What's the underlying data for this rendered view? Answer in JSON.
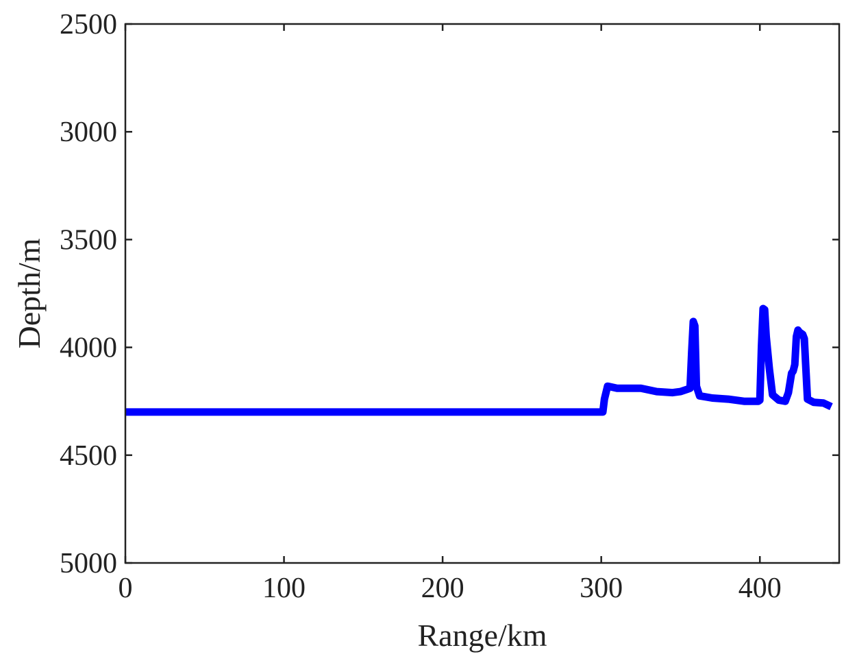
{
  "chart_data": {
    "type": "line",
    "title": "",
    "xlabel": "Range/km",
    "ylabel": "Depth/m",
    "xlim": [
      0,
      450
    ],
    "ylim": [
      2500,
      5000
    ],
    "y_reversed": true,
    "x_ticks": [
      0,
      100,
      200,
      300,
      400
    ],
    "y_ticks": [
      2500,
      3000,
      3500,
      4000,
      4500,
      5000
    ],
    "grid": false,
    "legend": "none",
    "colors": {
      "line": "#0000ff",
      "axes": "#222222",
      "background": "#ffffff"
    },
    "series": [
      {
        "x": [
          0,
          50,
          100,
          150,
          200,
          250,
          300,
          301,
          302,
          304,
          310,
          325,
          335,
          345,
          350,
          354,
          356,
          357,
          358,
          359,
          360,
          362,
          370,
          380,
          390,
          395,
          399,
          400,
          401,
          402,
          403,
          404,
          406,
          408,
          412,
          416,
          418,
          420,
          421,
          422,
          423,
          424,
          425,
          427,
          428,
          430,
          434,
          440,
          445
        ],
        "y": [
          4300,
          4300,
          4300,
          4300,
          4300,
          4300,
          4300,
          4300,
          4240,
          4180,
          4190,
          4190,
          4205,
          4210,
          4205,
          4195,
          4190,
          4020,
          3880,
          3900,
          4180,
          4225,
          4235,
          4240,
          4250,
          4250,
          4250,
          4245,
          4000,
          3820,
          3825,
          3950,
          4100,
          4220,
          4245,
          4250,
          4210,
          4120,
          4110,
          4080,
          3950,
          3920,
          3930,
          3940,
          3960,
          4240,
          4255,
          4258,
          4275
        ]
      }
    ]
  }
}
